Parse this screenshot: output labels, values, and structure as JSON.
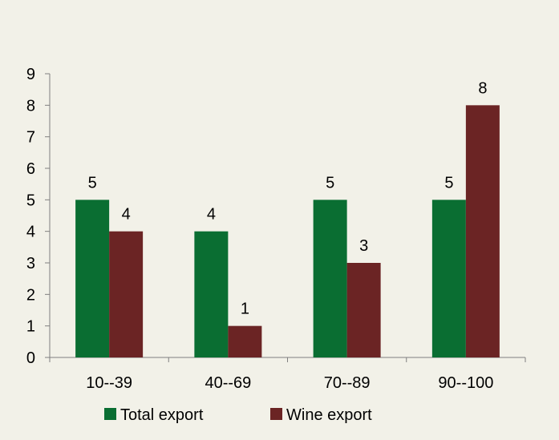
{
  "chart_data": {
    "type": "bar",
    "title": "",
    "xlabel": "",
    "ylabel": "",
    "categories": [
      "10--39",
      "40--69",
      "70--89",
      "90--100"
    ],
    "series": [
      {
        "name": "Total export",
        "values": [
          5,
          4,
          5,
          5
        ],
        "color": "#0a6e32"
      },
      {
        "name": "Wine export",
        "values": [
          4,
          1,
          3,
          8
        ],
        "color": "#6b2424"
      }
    ],
    "ylim": [
      0,
      9
    ],
    "yticks": [
      0,
      1,
      2,
      3,
      4,
      5,
      6,
      7,
      8,
      9
    ],
    "grid": false,
    "legend_position": "bottom",
    "data_labels": true,
    "background_color": "#f2f1e8"
  }
}
